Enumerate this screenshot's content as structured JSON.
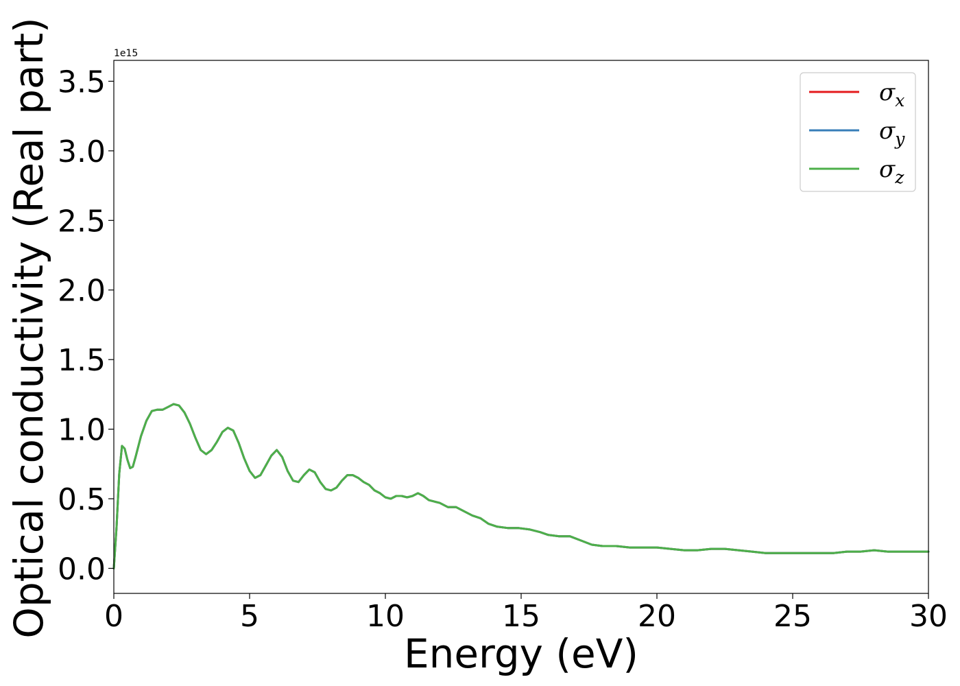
{
  "chart_data": {
    "type": "line",
    "xlabel": "Energy (eV)",
    "ylabel": "Optical conductivity (Real part)",
    "y_offset_text": "1e15",
    "y_scale": 1000000000000000.0,
    "xlim": [
      0,
      30
    ],
    "ylim": [
      -0.18,
      3.65
    ],
    "xticks": [
      0,
      5,
      10,
      15,
      20,
      25,
      30
    ],
    "xtick_labels": [
      "0",
      "5",
      "10",
      "15",
      "20",
      "25",
      "30"
    ],
    "yticks": [
      0.0,
      0.5,
      1.0,
      1.5,
      2.0,
      2.5,
      3.0,
      3.5
    ],
    "ytick_labels": [
      "0.0",
      "0.5",
      "1.0",
      "1.5",
      "2.0",
      "2.5",
      "3.0",
      "3.5"
    ],
    "grid": false,
    "legend_position": "top-right",
    "legend": [
      {
        "symbol": "σ",
        "subscript": "x",
        "color": "#e41a1c"
      },
      {
        "symbol": "σ",
        "subscript": "y",
        "color": "#377eb8"
      },
      {
        "symbol": "σ",
        "subscript": "z",
        "color": "#4daf4a"
      }
    ],
    "x": [
      0,
      0.1,
      0.2,
      0.3,
      0.4,
      0.5,
      0.6,
      0.7,
      0.8,
      1.0,
      1.2,
      1.4,
      1.6,
      1.8,
      2.0,
      2.2,
      2.4,
      2.6,
      2.8,
      3.0,
      3.2,
      3.4,
      3.6,
      3.8,
      4.0,
      4.2,
      4.4,
      4.6,
      4.8,
      5.0,
      5.2,
      5.4,
      5.6,
      5.8,
      6.0,
      6.2,
      6.4,
      6.6,
      6.8,
      7.0,
      7.2,
      7.4,
      7.6,
      7.8,
      8.0,
      8.2,
      8.4,
      8.6,
      8.8,
      9.0,
      9.2,
      9.4,
      9.6,
      9.8,
      10.0,
      10.2,
      10.4,
      10.6,
      10.8,
      11.0,
      11.2,
      11.4,
      11.6,
      11.8,
      12.0,
      12.3,
      12.6,
      12.9,
      13.2,
      13.5,
      13.8,
      14.1,
      14.5,
      14.9,
      15.3,
      15.7,
      16.0,
      16.4,
      16.8,
      17.2,
      17.6,
      18.0,
      18.5,
      19.0,
      19.5,
      20.0,
      20.5,
      21.0,
      21.5,
      22.0,
      22.5,
      23.0,
      23.5,
      24.0,
      24.5,
      25.0,
      25.5,
      26.0,
      26.5,
      27.0,
      27.5,
      28.0,
      28.5,
      29.0,
      29.5,
      30.0
    ],
    "series": [
      {
        "color": "#e41a1c",
        "values": [
          0.0,
          0.3,
          0.68,
          0.88,
          0.86,
          0.78,
          0.72,
          0.73,
          0.8,
          0.95,
          1.06,
          1.13,
          1.14,
          1.14,
          1.16,
          1.18,
          1.17,
          1.12,
          1.04,
          0.94,
          0.85,
          0.82,
          0.85,
          0.91,
          0.98,
          1.01,
          0.99,
          0.9,
          0.79,
          0.7,
          0.65,
          0.67,
          0.74,
          0.81,
          0.85,
          0.8,
          0.7,
          0.63,
          0.62,
          0.67,
          0.71,
          0.69,
          0.62,
          0.57,
          0.56,
          0.58,
          0.63,
          0.67,
          0.67,
          0.65,
          0.62,
          0.6,
          0.56,
          0.54,
          0.51,
          0.5,
          0.52,
          0.52,
          0.51,
          0.52,
          0.54,
          0.52,
          0.49,
          0.48,
          0.47,
          0.44,
          0.44,
          0.41,
          0.38,
          0.36,
          0.32,
          0.3,
          0.29,
          0.29,
          0.28,
          0.26,
          0.24,
          0.23,
          0.23,
          0.2,
          0.17,
          0.16,
          0.16,
          0.15,
          0.15,
          0.15,
          0.14,
          0.13,
          0.13,
          0.14,
          0.14,
          0.13,
          0.12,
          0.11,
          0.11,
          0.11,
          0.11,
          0.11,
          0.11,
          0.12,
          0.12,
          0.13,
          0.12,
          0.12,
          0.12,
          0.12
        ]
      },
      {
        "color": "#377eb8",
        "values": [
          0.0,
          0.3,
          0.68,
          0.88,
          0.86,
          0.78,
          0.72,
          0.73,
          0.8,
          0.95,
          1.06,
          1.13,
          1.14,
          1.14,
          1.16,
          1.18,
          1.17,
          1.12,
          1.04,
          0.94,
          0.85,
          0.82,
          0.85,
          0.91,
          0.98,
          1.01,
          0.99,
          0.9,
          0.79,
          0.7,
          0.65,
          0.67,
          0.74,
          0.81,
          0.85,
          0.8,
          0.7,
          0.63,
          0.62,
          0.67,
          0.71,
          0.69,
          0.62,
          0.57,
          0.56,
          0.58,
          0.63,
          0.67,
          0.67,
          0.65,
          0.62,
          0.6,
          0.56,
          0.54,
          0.51,
          0.5,
          0.52,
          0.52,
          0.51,
          0.52,
          0.54,
          0.52,
          0.49,
          0.48,
          0.47,
          0.44,
          0.44,
          0.41,
          0.38,
          0.36,
          0.32,
          0.3,
          0.29,
          0.29,
          0.28,
          0.26,
          0.24,
          0.23,
          0.23,
          0.2,
          0.17,
          0.16,
          0.16,
          0.15,
          0.15,
          0.15,
          0.14,
          0.13,
          0.13,
          0.14,
          0.14,
          0.13,
          0.12,
          0.11,
          0.11,
          0.11,
          0.11,
          0.11,
          0.11,
          0.12,
          0.12,
          0.13,
          0.12,
          0.12,
          0.12,
          0.12
        ]
      },
      {
        "color": "#4daf4a",
        "values": [
          0.0,
          0.3,
          0.68,
          0.88,
          0.86,
          0.78,
          0.72,
          0.73,
          0.8,
          0.95,
          1.06,
          1.13,
          1.14,
          1.14,
          1.16,
          1.18,
          1.17,
          1.12,
          1.04,
          0.94,
          0.85,
          0.82,
          0.85,
          0.91,
          0.98,
          1.01,
          0.99,
          0.9,
          0.79,
          0.7,
          0.65,
          0.67,
          0.74,
          0.81,
          0.85,
          0.8,
          0.7,
          0.63,
          0.62,
          0.67,
          0.71,
          0.69,
          0.62,
          0.57,
          0.56,
          0.58,
          0.63,
          0.67,
          0.67,
          0.65,
          0.62,
          0.6,
          0.56,
          0.54,
          0.51,
          0.5,
          0.52,
          0.52,
          0.51,
          0.52,
          0.54,
          0.52,
          0.49,
          0.48,
          0.47,
          0.44,
          0.44,
          0.41,
          0.38,
          0.36,
          0.32,
          0.3,
          0.29,
          0.29,
          0.28,
          0.26,
          0.24,
          0.23,
          0.23,
          0.2,
          0.17,
          0.16,
          0.16,
          0.15,
          0.15,
          0.15,
          0.14,
          0.13,
          0.13,
          0.14,
          0.14,
          0.13,
          0.12,
          0.11,
          0.11,
          0.11,
          0.11,
          0.11,
          0.11,
          0.12,
          0.12,
          0.13,
          0.12,
          0.12,
          0.12,
          0.12
        ]
      }
    ]
  }
}
